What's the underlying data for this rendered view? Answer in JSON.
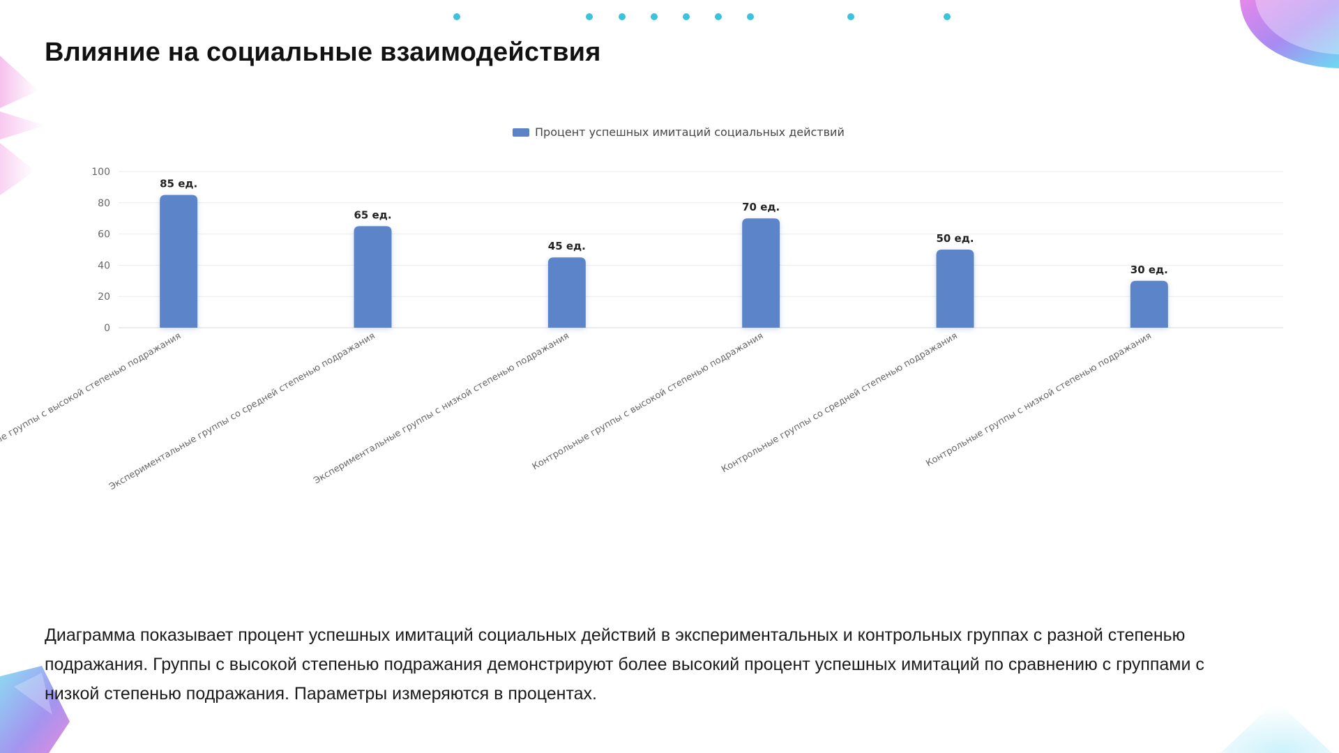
{
  "slide": {
    "title": "Влияние на социальные взаимодействия",
    "description": "Диаграмма показывает процент успешных имитаций социальных действий в экспериментальных и контрольных группах с разной степенью подражания. Группы с высокой степенью подражания демонстрируют более высокий процент успешных имитаций по сравнению с группами с низкой степенью подражания. Параметры измеряются в процентах."
  },
  "colors": {
    "bar": "#5b84c8",
    "accent_dot": "#3cc3dc",
    "grid": "#e9ebef",
    "axis_text": "#666666",
    "label_text": "#222222"
  },
  "chart_data": {
    "type": "bar",
    "categories": [
      "Экспериментальные группы с высокой степенью подражания",
      "Экспериментальные группы со средней степенью подражания",
      "Экспериментальные группы с низкой степенью подражания",
      "Контрольные группы с высокой степенью подражания",
      "Контрольные группы со средней степенью подражания",
      "Контрольные группы с низкой степенью подражания"
    ],
    "series": [
      {
        "name": "Процент успешных имитаций социальных действий",
        "values": [
          85,
          65,
          45,
          70,
          50,
          30
        ],
        "data_labels": [
          "85 ед.",
          "65 ед.",
          "45 ед.",
          "70 ед.",
          "50 ед.",
          "30 ед."
        ]
      }
    ],
    "ylim": [
      0,
      100
    ],
    "yticks": [
      0,
      20,
      40,
      60,
      80,
      100
    ],
    "grid": true,
    "legend_position": "top-center"
  }
}
